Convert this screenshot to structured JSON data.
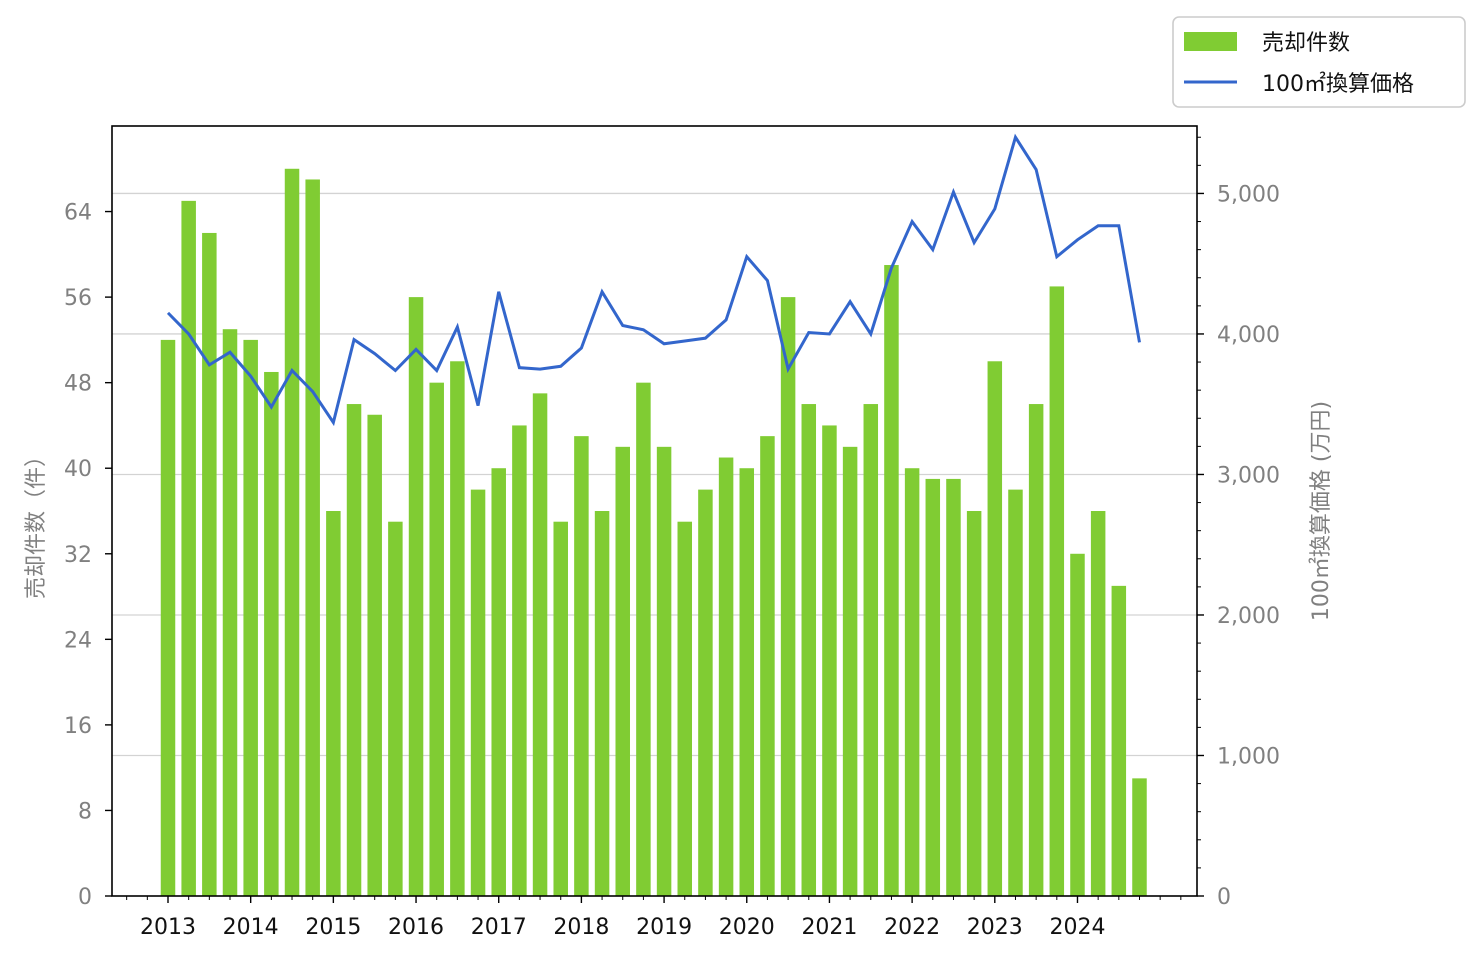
{
  "chart_data": {
    "type": "bar+line",
    "title": "",
    "legend": {
      "placement": "top-right",
      "entries": [
        {
          "label": "売却件数",
          "kind": "bar",
          "color": "#80cc33"
        },
        {
          "label": "100㎡換算価格",
          "kind": "line",
          "color": "#3366cc"
        }
      ]
    },
    "left_axis": {
      "label": "売却件数（件）",
      "ylim": [
        0,
        72
      ],
      "ticks": [
        0,
        8,
        16,
        24,
        32,
        40,
        48,
        56,
        64
      ],
      "tick_labels": [
        "0",
        "8",
        "16",
        "24",
        "32",
        "40",
        "48",
        "56",
        "64"
      ]
    },
    "right_axis": {
      "label": "100㎡換算価格 (万円)",
      "ylim": [
        0,
        5480
      ],
      "ticks": [
        0,
        1000,
        2000,
        3000,
        4000,
        5000
      ],
      "tick_labels": [
        "0",
        "1,000",
        "2,000",
        "3,000",
        "4,000",
        "5,000"
      ]
    },
    "x_axis": {
      "tick_labels": [
        "2013",
        "2014",
        "2015",
        "2016",
        "2017",
        "2018",
        "2019",
        "2020",
        "2021",
        "2022",
        "2023",
        "2024"
      ]
    },
    "grid": "horizontal",
    "series": [
      {
        "name": "売却件数",
        "type": "bar",
        "color": "#80cc33",
        "values": [
          52,
          65,
          62,
          53,
          52,
          49,
          68,
          67,
          36,
          46,
          45,
          35,
          56,
          48,
          50,
          38,
          40,
          44,
          47,
          35,
          43,
          36,
          42,
          48,
          42,
          35,
          38,
          41,
          40,
          43,
          56,
          46,
          44,
          42,
          46,
          59,
          40,
          39,
          39,
          36,
          50,
          38,
          46,
          57,
          32,
          36,
          29,
          11
        ]
      },
      {
        "name": "100㎡換算価格",
        "type": "line",
        "color": "#3366cc",
        "values": [
          4150,
          4000,
          3780,
          3870,
          3700,
          3480,
          3740,
          3590,
          3370,
          3960,
          3860,
          3740,
          3890,
          3740,
          4050,
          3490,
          4300,
          3760,
          3750,
          3770,
          3900,
          4300,
          4060,
          4030,
          3930,
          3950,
          3970,
          4100,
          4550,
          4380,
          3750,
          4010,
          4000,
          4230,
          4000,
          4470,
          4800,
          4600,
          5010,
          4650,
          4890,
          5400,
          5170,
          4550,
          4670,
          4770,
          4770,
          3940
        ]
      }
    ]
  }
}
